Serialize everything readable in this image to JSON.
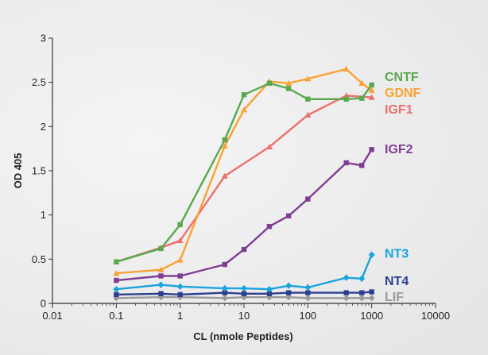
{
  "chart_data": {
    "type": "line",
    "title": "",
    "xlabel": "CL (nmole Peptides)",
    "ylabel": "OD 405",
    "xscale": "log",
    "xlim": [
      0.01,
      10000
    ],
    "ylim": [
      0,
      3
    ],
    "xticks": [
      {
        "value": 0.01,
        "label": "0.01"
      },
      {
        "value": 0.1,
        "label": "0.1"
      },
      {
        "value": 1,
        "label": "1"
      },
      {
        "value": 10,
        "label": "10"
      },
      {
        "value": 100,
        "label": "100"
      },
      {
        "value": 1000,
        "label": "1000"
      },
      {
        "value": 10000,
        "label": "10000"
      }
    ],
    "yticks": [
      {
        "value": 0,
        "label": "0"
      },
      {
        "value": 0.5,
        "label": "0.5"
      },
      {
        "value": 1,
        "label": "1"
      },
      {
        "value": 1.5,
        "label": "1.5"
      },
      {
        "value": 2,
        "label": "2"
      },
      {
        "value": 2.5,
        "label": "2.5"
      },
      {
        "value": 3,
        "label": "3"
      }
    ],
    "grid": false,
    "legend": "inline labels at right end of lines",
    "series": [
      {
        "name": "CNTF",
        "color": "#5aa84e",
        "marker": "square",
        "label_value": 2.57,
        "x": [
          0.1,
          0.5,
          1,
          5,
          10,
          25,
          50,
          100,
          400,
          700,
          1000
        ],
        "y": [
          0.47,
          0.62,
          0.89,
          1.85,
          2.36,
          2.49,
          2.43,
          2.31,
          2.31,
          2.32,
          2.47
        ]
      },
      {
        "name": "GDNF",
        "color": "#f7a234",
        "marker": "triangle",
        "label_value": 2.39,
        "x": [
          0.1,
          0.5,
          1,
          5,
          10,
          25,
          50,
          100,
          400,
          700,
          1000
        ],
        "y": [
          0.34,
          0.38,
          0.49,
          1.78,
          2.19,
          2.51,
          2.49,
          2.54,
          2.65,
          2.49,
          2.41
        ]
      },
      {
        "name": "IGF1",
        "color": "#ec6f6c",
        "marker": "triangle",
        "label_value": 2.2,
        "x": [
          0.1,
          0.5,
          1,
          5,
          25,
          100,
          400,
          1000
        ],
        "y": [
          0.47,
          0.63,
          0.71,
          1.44,
          1.77,
          2.13,
          2.35,
          2.33
        ]
      },
      {
        "name": "IGF2",
        "color": "#7f3d92",
        "marker": "square",
        "label_value": 1.75,
        "x": [
          0.1,
          0.5,
          1,
          5,
          10,
          25,
          50,
          100,
          400,
          700,
          1000
        ],
        "y": [
          0.26,
          0.31,
          0.31,
          0.44,
          0.61,
          0.87,
          0.99,
          1.18,
          1.59,
          1.56,
          1.74
        ]
      },
      {
        "name": "NT3",
        "color": "#19a4dc",
        "marker": "diamond",
        "label_value": 0.57,
        "x": [
          0.1,
          0.5,
          1,
          5,
          10,
          25,
          50,
          100,
          400,
          700,
          1000
        ],
        "y": [
          0.16,
          0.21,
          0.19,
          0.17,
          0.17,
          0.16,
          0.2,
          0.18,
          0.29,
          0.28,
          0.55
        ]
      },
      {
        "name": "NT4",
        "color": "#2c3f8f",
        "marker": "square",
        "label_value": 0.26,
        "x": [
          0.1,
          0.5,
          1,
          5,
          10,
          25,
          50,
          100,
          400,
          700,
          1000
        ],
        "y": [
          0.1,
          0.11,
          0.1,
          0.12,
          0.11,
          0.11,
          0.12,
          0.12,
          0.12,
          0.12,
          0.13
        ]
      },
      {
        "name": "LIF",
        "color": "#9a9a9a",
        "marker": "diamond",
        "label_value": 0.08,
        "x": [
          0.1,
          0.5,
          1,
          5,
          10,
          25,
          50,
          100,
          400,
          700,
          1000
        ],
        "y": [
          0.06,
          0.07,
          0.07,
          0.06,
          0.07,
          0.07,
          0.07,
          0.06,
          0.06,
          0.06,
          0.06
        ]
      }
    ]
  }
}
